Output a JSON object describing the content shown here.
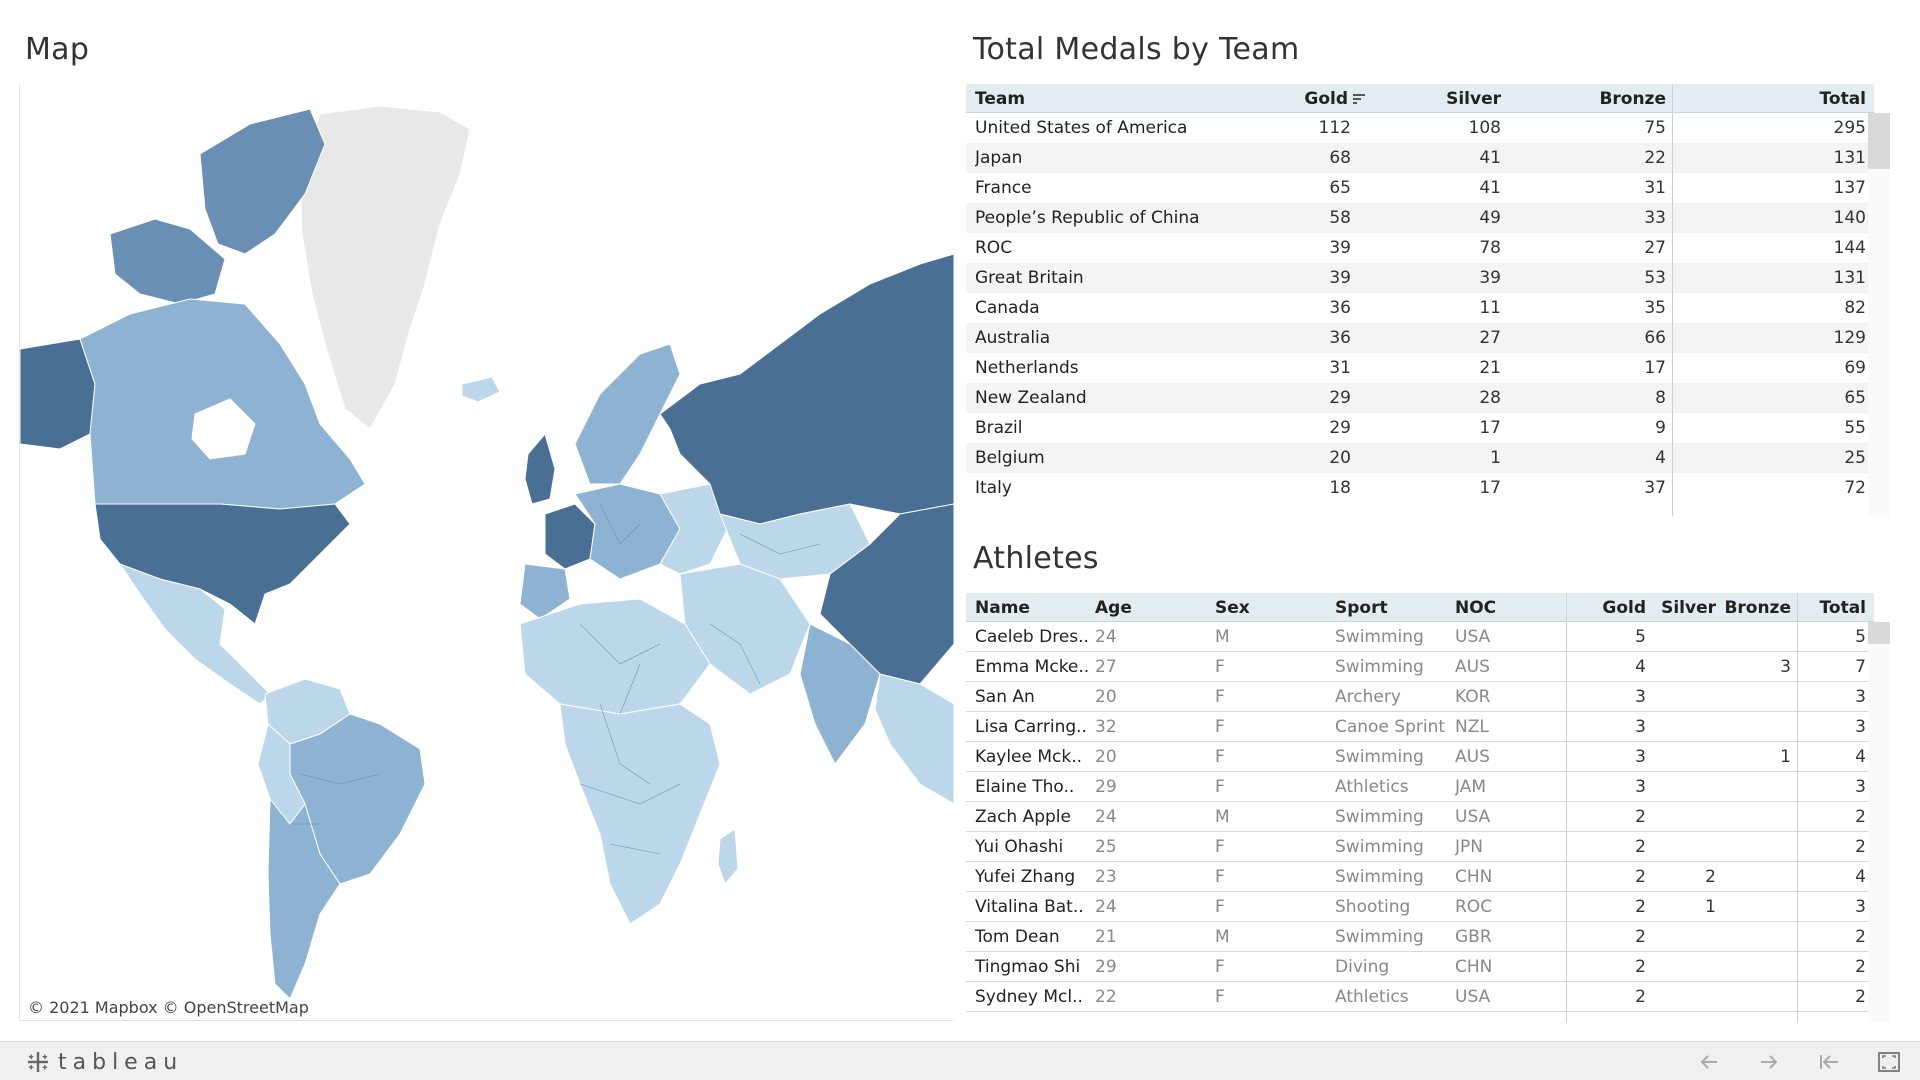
{
  "map": {
    "title": "Map",
    "attribution": "© 2021 Mapbox  © OpenStreetMap",
    "colors": {
      "darkest": "#4a6f95",
      "dark": "#6a8fb4",
      "medium": "#8eb2d2",
      "light": "#bcd6ea",
      "no_data": "#e8e8e8"
    }
  },
  "medals": {
    "title": "Total Medals by Team",
    "columns": {
      "team": "Team",
      "gold": "Gold",
      "silver": "Silver",
      "bronze": "Bronze",
      "total": "Total"
    },
    "rows": [
      {
        "team": "United States of America",
        "gold": "112",
        "silver": "108",
        "bronze": "75",
        "total": "295"
      },
      {
        "team": "Japan",
        "gold": "68",
        "silver": "41",
        "bronze": "22",
        "total": "131"
      },
      {
        "team": "France",
        "gold": "65",
        "silver": "41",
        "bronze": "31",
        "total": "137"
      },
      {
        "team": "People’s Republic of China",
        "gold": "58",
        "silver": "49",
        "bronze": "33",
        "total": "140"
      },
      {
        "team": "ROC",
        "gold": "39",
        "silver": "78",
        "bronze": "27",
        "total": "144"
      },
      {
        "team": "Great Britain",
        "gold": "39",
        "silver": "39",
        "bronze": "53",
        "total": "131"
      },
      {
        "team": "Canada",
        "gold": "36",
        "silver": "11",
        "bronze": "35",
        "total": "82"
      },
      {
        "team": "Australia",
        "gold": "36",
        "silver": "27",
        "bronze": "66",
        "total": "129"
      },
      {
        "team": "Netherlands",
        "gold": "31",
        "silver": "21",
        "bronze": "17",
        "total": "69"
      },
      {
        "team": "New Zealand",
        "gold": "29",
        "silver": "28",
        "bronze": "8",
        "total": "65"
      },
      {
        "team": "Brazil",
        "gold": "29",
        "silver": "17",
        "bronze": "9",
        "total": "55"
      },
      {
        "team": "Belgium",
        "gold": "20",
        "silver": "1",
        "bronze": "4",
        "total": "25"
      },
      {
        "team": "Italy",
        "gold": "18",
        "silver": "17",
        "bronze": "37",
        "total": "72"
      }
    ]
  },
  "athletes": {
    "title": "Athletes",
    "columns": {
      "name": "Name",
      "age": "Age",
      "sex": "Sex",
      "sport": "Sport",
      "noc": "NOC",
      "gold": "Gold",
      "silver": "Silver",
      "bronze": "Bronze",
      "total": "Total"
    },
    "rows": [
      {
        "name": "Caeleb Dres..",
        "age": "24",
        "sex": "M",
        "sport": "Swimming",
        "noc": "USA",
        "gold": "5",
        "silver": "",
        "bronze": "",
        "total": "5"
      },
      {
        "name": "Emma Mcke..",
        "age": "27",
        "sex": "F",
        "sport": "Swimming",
        "noc": "AUS",
        "gold": "4",
        "silver": "",
        "bronze": "3",
        "total": "7"
      },
      {
        "name": "San An",
        "age": "20",
        "sex": "F",
        "sport": "Archery",
        "noc": "KOR",
        "gold": "3",
        "silver": "",
        "bronze": "",
        "total": "3"
      },
      {
        "name": "Lisa Carring..",
        "age": "32",
        "sex": "F",
        "sport": "Canoe Sprint",
        "noc": "NZL",
        "gold": "3",
        "silver": "",
        "bronze": "",
        "total": "3"
      },
      {
        "name": "Kaylee Mck..",
        "age": "20",
        "sex": "F",
        "sport": "Swimming",
        "noc": "AUS",
        "gold": "3",
        "silver": "",
        "bronze": "1",
        "total": "4"
      },
      {
        "name": "Elaine Tho..",
        "age": "29",
        "sex": "F",
        "sport": "Athletics",
        "noc": "JAM",
        "gold": "3",
        "silver": "",
        "bronze": "",
        "total": "3"
      },
      {
        "name": "Zach Apple",
        "age": "24",
        "sex": "M",
        "sport": "Swimming",
        "noc": "USA",
        "gold": "2",
        "silver": "",
        "bronze": "",
        "total": "2"
      },
      {
        "name": "Yui Ohashi",
        "age": "25",
        "sex": "F",
        "sport": "Swimming",
        "noc": "JPN",
        "gold": "2",
        "silver": "",
        "bronze": "",
        "total": "2"
      },
      {
        "name": "Yufei Zhang",
        "age": "23",
        "sex": "F",
        "sport": "Swimming",
        "noc": "CHN",
        "gold": "2",
        "silver": "2",
        "bronze": "",
        "total": "4"
      },
      {
        "name": "Vitalina Bat..",
        "age": "24",
        "sex": "F",
        "sport": "Shooting",
        "noc": "ROC",
        "gold": "2",
        "silver": "1",
        "bronze": "",
        "total": "3"
      },
      {
        "name": "Tom Dean",
        "age": "21",
        "sex": "M",
        "sport": "Swimming",
        "noc": "GBR",
        "gold": "2",
        "silver": "",
        "bronze": "",
        "total": "2"
      },
      {
        "name": "Tingmao Shi",
        "age": "29",
        "sex": "F",
        "sport": "Diving",
        "noc": "CHN",
        "gold": "2",
        "silver": "",
        "bronze": "",
        "total": "2"
      },
      {
        "name": "Sydney Mcl..",
        "age": "22",
        "sex": "F",
        "sport": "Athletics",
        "noc": "USA",
        "gold": "2",
        "silver": "",
        "bronze": "",
        "total": "2"
      }
    ]
  },
  "footer": {
    "brand": "tableau",
    "icons": [
      "undo-icon",
      "redo-icon",
      "revert-icon",
      "fullscreen-icon"
    ]
  }
}
